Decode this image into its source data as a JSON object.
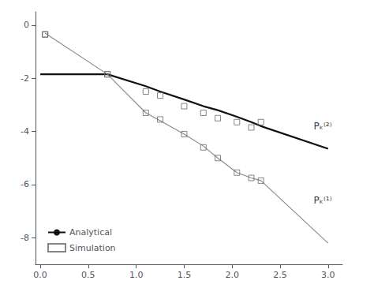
{
  "chart_data": {
    "type": "line",
    "xlim": [
      -0.05,
      3.15
    ],
    "ylim": [
      -9.0,
      0.5
    ],
    "xticks": [
      {
        "value": 0.0,
        "label": "0.0"
      },
      {
        "value": 0.5,
        "label": "0.5"
      },
      {
        "value": 1.0,
        "label": "1.0"
      },
      {
        "value": 1.5,
        "label": "1.5"
      },
      {
        "value": 2.0,
        "label": "2.0"
      },
      {
        "value": 2.5,
        "label": "2.5"
      },
      {
        "value": 3.0,
        "label": "3.0"
      }
    ],
    "yticks": [
      0,
      -2,
      -4,
      -6,
      -8
    ],
    "grid": false,
    "legend": "lower left",
    "series": [
      {
        "name": "Analytical",
        "type": "line",
        "color": "#111111",
        "x": [
          0.0,
          0.7,
          1.1,
          1.25,
          1.5,
          1.7,
          1.85,
          2.05,
          2.2,
          2.3,
          3.0
        ],
        "values": [
          -1.85,
          -1.85,
          -2.3,
          -2.5,
          -2.8,
          -3.05,
          -3.2,
          -3.45,
          -3.65,
          -3.8,
          -4.65
        ]
      },
      {
        "name": "Analytical",
        "type": "line",
        "color": "#888888",
        "x": [
          0.05,
          0.7,
          1.1,
          1.25,
          1.5,
          1.7,
          1.85,
          2.05,
          2.2,
          2.3,
          3.0
        ],
        "values": [
          -0.3,
          -1.85,
          -3.3,
          -3.6,
          -4.1,
          -4.55,
          -5.0,
          -5.55,
          -5.75,
          -5.85,
          -8.2
        ]
      },
      {
        "name": "Simulation",
        "type": "scatter",
        "marker": "square",
        "color": "#666666",
        "x": [
          0.05,
          0.7,
          1.1,
          1.25,
          1.5,
          1.7,
          1.85,
          2.05,
          2.2,
          2.3
        ],
        "values": [
          -0.35,
          -1.85,
          -2.5,
          -2.65,
          -3.05,
          -3.3,
          -3.5,
          -3.65,
          -3.85,
          -3.65
        ]
      },
      {
        "name": "Simulation",
        "type": "scatter",
        "marker": "square",
        "color": "#666666",
        "x": [
          0.05,
          0.7,
          1.1,
          1.25,
          1.5,
          1.7,
          1.85,
          2.05,
          2.2,
          2.3
        ],
        "values": [
          -0.35,
          -1.85,
          -3.3,
          -3.55,
          -4.1,
          -4.6,
          -5.0,
          -5.55,
          -5.75,
          -5.85
        ]
      }
    ],
    "annotations": [
      {
        "text": "Pₖ⁽²⁾",
        "x": 2.85,
        "y": -3.8
      },
      {
        "text": "Pₖ⁽¹⁾",
        "x": 2.85,
        "y": -6.6
      }
    ]
  }
}
